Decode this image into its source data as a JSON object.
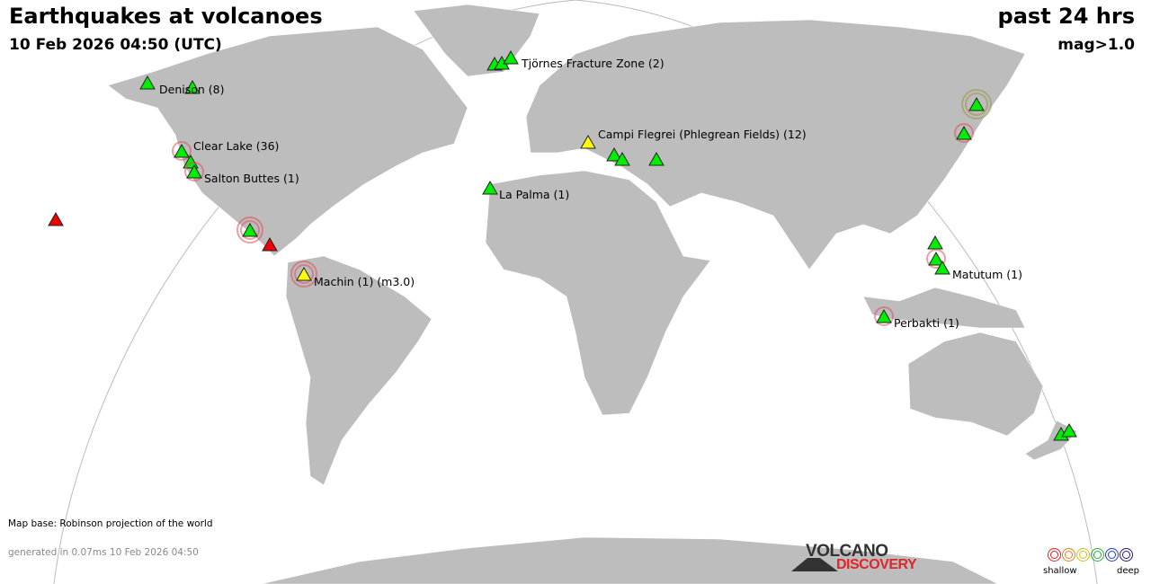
{
  "header": {
    "title": "Earthquakes at volcanoes",
    "datetime": "10 Feb 2026 04:50 (UTC)",
    "period": "past 24 hrs",
    "magnitude_filter": "mag>1.0"
  },
  "labels": {
    "denison": "Denison (8)",
    "clear_lake": "Clear Lake (36)",
    "salton_buttes": "Salton Buttes (1)",
    "tjornes": "Tjörnes Fracture Zone (2)",
    "campi_flegrei": "Campi Flegrei (Phlegrean Fields) (12)",
    "la_palma": "La Palma (1)",
    "machin": "Machin (1) (m3.0)",
    "matutum": "Matutum (1)",
    "perbakti": "Perbakti (1)"
  },
  "footer": {
    "map_base": "Map base: Robinson projection of the world",
    "generated": "generated in 0.07ms 10 Feb 2026 04:50"
  },
  "logo": {
    "line1": "VOLCANO",
    "line2": "DISCOVERY"
  },
  "legend": {
    "shallow": "shallow",
    "deep": "deep",
    "colors": [
      "#e02020",
      "#e08020",
      "#c8c020",
      "#30b030",
      "#2040d0",
      "#301080"
    ]
  },
  "colors": {
    "land": "#bdbdbd",
    "ocean": "#ffffff",
    "marker_green": "#00ee00",
    "marker_yellow": "#ffff00",
    "marker_red": "#ee0000",
    "ring": "#dc505a"
  }
}
